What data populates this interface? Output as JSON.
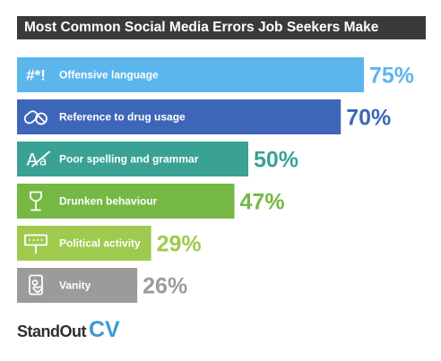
{
  "chart_data": {
    "type": "bar",
    "orientation": "horizontal",
    "title": "Most Common Social Media Errors Job Seekers Make",
    "xlim": [
      0,
      100
    ],
    "grid": false,
    "legend": "none",
    "categories": [
      "Offensive language",
      "Reference to drug usage",
      "Poor spelling and grammar",
      "Drunken behaviour",
      "Political activity",
      "Vanity"
    ],
    "values": [
      75,
      70,
      50,
      47,
      29,
      26
    ],
    "value_labels": [
      "75%",
      "70%",
      "50%",
      "47%",
      "29%",
      "26%"
    ],
    "icons": [
      "censored-symbols-icon",
      "pills-icon",
      "spelling-correction-icon",
      "wine-glass-icon",
      "protest-sign-icon",
      "phone-selfie-icon"
    ],
    "icon_text": [
      "#*!",
      "",
      "",
      "",
      "",
      ""
    ],
    "colors": [
      "#5bb6ec",
      "#3e66b8",
      "#3aa294",
      "#76b844",
      "#9fca4e",
      "#9b9b9b"
    ]
  },
  "branding": {
    "word1": "StandOut",
    "word2": "CV"
  }
}
